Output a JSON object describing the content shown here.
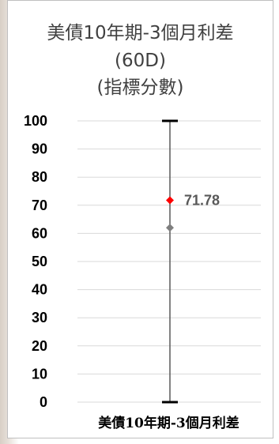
{
  "chart_data": {
    "type": "range",
    "title_lines": [
      "美債10年期-3個月利差",
      "(60D)",
      "(指標分數)"
    ],
    "categories": [
      "美債10年期-3個月利差"
    ],
    "y_ticks": [
      0,
      10,
      20,
      30,
      40,
      50,
      60,
      70,
      80,
      90,
      100
    ],
    "ylim": [
      0,
      100
    ],
    "grid": true,
    "range": {
      "low": 0,
      "high": 100
    },
    "series": [
      {
        "values": [
          71.78
        ],
        "color": "#ff0000",
        "marker": "diamond",
        "label": "71.78"
      },
      {
        "values": [
          62
        ],
        "color": "#7f7f7f",
        "marker": "diamond"
      }
    ],
    "colors": {
      "range_line": "#595959",
      "range_cap": "#000000",
      "grid": "#d9d9d9"
    }
  }
}
